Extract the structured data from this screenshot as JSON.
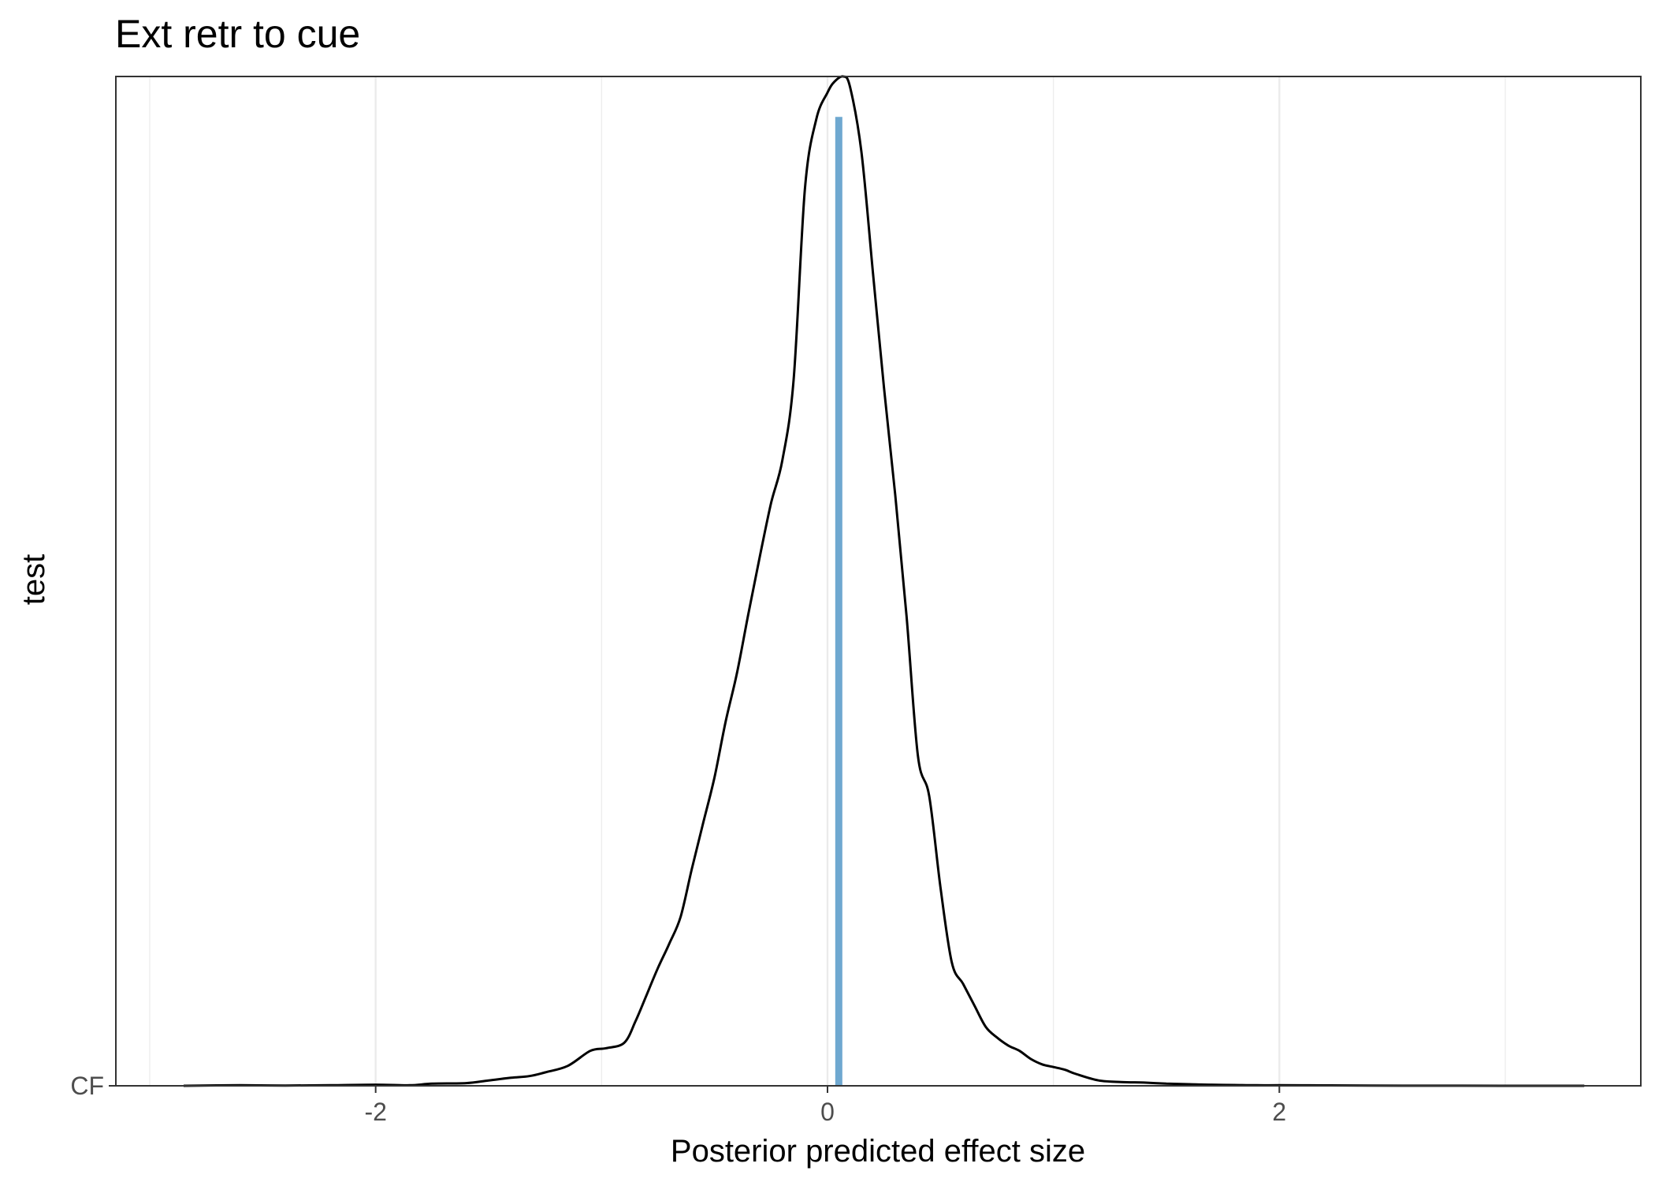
{
  "chart_data": {
    "type": "density",
    "title": "Ext retr to cue",
    "xlabel": "Posterior predicted effect size",
    "ylabel": "test",
    "xlim": [
      -3.15,
      3.6
    ],
    "ylim": [
      0,
      1.0
    ],
    "x_ticks": [
      -2,
      0,
      2
    ],
    "x_tick_labels": [
      "-2",
      "0",
      "2"
    ],
    "x_minor_grid": [
      -3,
      -1,
      1,
      3
    ],
    "y_categories": [
      "CF"
    ],
    "grid": "vertical-only",
    "legend": "none",
    "colors": {
      "density_line": "#000000",
      "point_estimate": "#6fa8d0",
      "grid": "#ebebeb",
      "panel_border": "#333333"
    },
    "point_estimate": {
      "x": 0.05,
      "height": 0.96
    },
    "density": {
      "x": [
        -2.85,
        -2.6,
        -2.4,
        -2.2,
        -2.0,
        -1.85,
        -1.75,
        -1.6,
        -1.5,
        -1.4,
        -1.32,
        -1.25,
        -1.15,
        -1.05,
        -0.98,
        -0.9,
        -0.85,
        -0.8,
        -0.75,
        -0.7,
        -0.65,
        -0.6,
        -0.55,
        -0.5,
        -0.45,
        -0.4,
        -0.35,
        -0.3,
        -0.25,
        -0.2,
        -0.15,
        -0.1,
        -0.05,
        0.0,
        0.03,
        0.07,
        0.1,
        0.15,
        0.2,
        0.25,
        0.3,
        0.35,
        0.4,
        0.45,
        0.5,
        0.55,
        0.6,
        0.65,
        0.7,
        0.75,
        0.8,
        0.85,
        0.9,
        0.95,
        1.0,
        1.05,
        1.1,
        1.2,
        1.3,
        1.4,
        1.5,
        1.6,
        1.7,
        1.8,
        1.9,
        2.0,
        2.2,
        2.4,
        2.6,
        2.8,
        3.0,
        3.2,
        3.35
      ],
      "y": [
        0.0,
        0.001,
        0.0005,
        0.001,
        0.002,
        0.001,
        0.004,
        0.005,
        0.01,
        0.015,
        0.018,
        0.025,
        0.037,
        0.065,
        0.07,
        0.08,
        0.12,
        0.17,
        0.22,
        0.265,
        0.315,
        0.405,
        0.49,
        0.575,
        0.68,
        0.77,
        0.88,
        0.985,
        1.085,
        1.165,
        1.315,
        1.67,
        1.8,
        1.85,
        1.87,
        1.88,
        1.86,
        1.74,
        1.52,
        1.3,
        1.1,
        0.875,
        0.615,
        0.54,
        0.37,
        0.23,
        0.19,
        0.15,
        0.11,
        0.09,
        0.075,
        0.065,
        0.05,
        0.04,
        0.035,
        0.03,
        0.022,
        0.01,
        0.007,
        0.006,
        0.004,
        0.003,
        0.002,
        0.0015,
        0.001,
        0.001,
        0.0008,
        0.0005,
        0.0002,
        0.0001,
        0.0,
        0.0,
        0.0
      ]
    }
  }
}
